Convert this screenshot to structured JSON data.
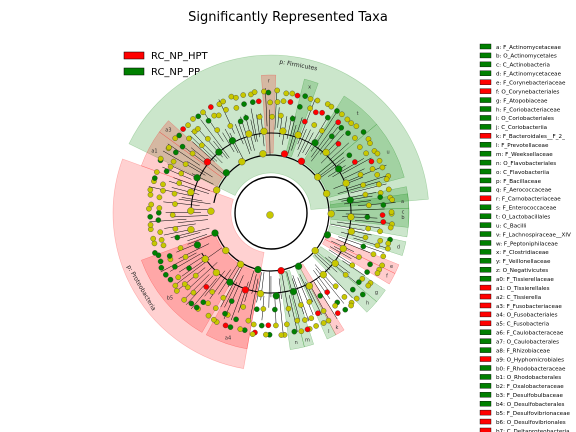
{
  "chart_data": {
    "type": "cladogram",
    "title": "Significantly Represented Taxa",
    "groups": [
      {
        "name": "RC_NP_HPT",
        "color": "#ff0000",
        "shade": "#ffb3b3"
      },
      {
        "name": "RC_NP_PP",
        "color": "#008000",
        "shade": "#a8d5a8"
      }
    ],
    "phylum_sectors": [
      {
        "label": "p: Firmicutes",
        "group": "RC_NP_PP",
        "start": 206,
        "end": 355
      },
      {
        "label": "p: Proteobacteria",
        "group": "RC_NP_HPT",
        "start": 100,
        "end": 200
      }
    ],
    "taxa": [
      {
        "key": "a",
        "name": "F_Actinomycetaceae",
        "group": "RC_NP_PP"
      },
      {
        "key": "b",
        "name": "O_Actinomycetales",
        "group": "RC_NP_PP"
      },
      {
        "key": "c",
        "name": "C_Actinobacteria",
        "group": "RC_NP_PP"
      },
      {
        "key": "d",
        "name": "F_Actinomycetaceae",
        "group": "RC_NP_PP"
      },
      {
        "key": "e",
        "name": "F_Corynebacteriaceae",
        "group": "RC_NP_HPT"
      },
      {
        "key": "f",
        "name": "O_Corynebacteriales",
        "group": "RC_NP_HPT"
      },
      {
        "key": "g",
        "name": "F_Atopobiaceae",
        "group": "RC_NP_PP"
      },
      {
        "key": "h",
        "name": "F_Coriobacteriaceae",
        "group": "RC_NP_PP"
      },
      {
        "key": "i",
        "name": "O_Coriobacteriales",
        "group": "RC_NP_PP"
      },
      {
        "key": "j",
        "name": "C_Coriobacteriia",
        "group": "RC_NP_PP"
      },
      {
        "key": "k",
        "name": "F_Bacteroidales__F_2_",
        "group": "RC_NP_HPT"
      },
      {
        "key": "l",
        "name": "F_Prevotellaceae",
        "group": "RC_NP_PP"
      },
      {
        "key": "m",
        "name": "F_Weeksellaceae",
        "group": "RC_NP_PP"
      },
      {
        "key": "n",
        "name": "O_Flavobacteriales",
        "group": "RC_NP_PP"
      },
      {
        "key": "o",
        "name": "C_Flavobacteriia",
        "group": "RC_NP_PP"
      },
      {
        "key": "p",
        "name": "F_Bacillaceae",
        "group": "RC_NP_PP"
      },
      {
        "key": "q",
        "name": "F_Aerococcaceae",
        "group": "RC_NP_PP"
      },
      {
        "key": "r",
        "name": "F_Carnobacteriaceae",
        "group": "RC_NP_HPT"
      },
      {
        "key": "s",
        "name": "F_Enterococcaceae",
        "group": "RC_NP_PP"
      },
      {
        "key": "t",
        "name": "O_Lactobacillales",
        "group": "RC_NP_PP"
      },
      {
        "key": "u",
        "name": "C_Bacilli",
        "group": "RC_NP_PP"
      },
      {
        "key": "v",
        "name": "F_Lachnospiraceae__XIV",
        "group": "RC_NP_PP"
      },
      {
        "key": "w",
        "name": "F_Peptoniphilaceae",
        "group": "RC_NP_PP"
      },
      {
        "key": "x",
        "name": "F_Clostridiaceae",
        "group": "RC_NP_PP"
      },
      {
        "key": "y",
        "name": "F_Veillonellaceae",
        "group": "RC_NP_PP"
      },
      {
        "key": "z",
        "name": "O_Negativicutes",
        "group": "RC_NP_PP"
      },
      {
        "key": "a0",
        "name": "F_Tissierellaceae",
        "group": "RC_NP_PP"
      },
      {
        "key": "a1",
        "name": "O_Tissierellales",
        "group": "RC_NP_HPT"
      },
      {
        "key": "a2",
        "name": "C_Tissierella",
        "group": "RC_NP_HPT"
      },
      {
        "key": "a3",
        "name": "F_Fusobacteriaceae",
        "group": "RC_NP_HPT"
      },
      {
        "key": "a4",
        "name": "O_Fusobacteriales",
        "group": "RC_NP_HPT"
      },
      {
        "key": "a5",
        "name": "C_Fusobacteria",
        "group": "RC_NP_HPT"
      },
      {
        "key": "a6",
        "name": "F_Caulobacteraceae",
        "group": "RC_NP_PP"
      },
      {
        "key": "a7",
        "name": "O_Caulobacterales",
        "group": "RC_NP_PP"
      },
      {
        "key": "a8",
        "name": "F_Rhizobiaceae",
        "group": "RC_NP_PP"
      },
      {
        "key": "a9",
        "name": "O_Hyphomicrobiales",
        "group": "RC_NP_HPT"
      },
      {
        "key": "b0",
        "name": "F_Rhodobacteraceae",
        "group": "RC_NP_PP"
      },
      {
        "key": "b1",
        "name": "O_Rhodobacterales",
        "group": "RC_NP_PP"
      },
      {
        "key": "b2",
        "name": "F_Oxalobacteraceae",
        "group": "RC_NP_PP"
      },
      {
        "key": "b3",
        "name": "F_Desulfobulbaceae",
        "group": "RC_NP_PP"
      },
      {
        "key": "b4",
        "name": "O_Desulfobacterales",
        "group": "RC_NP_PP"
      },
      {
        "key": "b5",
        "name": "F_Desulfovibrionaceae",
        "group": "RC_NP_HPT"
      },
      {
        "key": "b6",
        "name": "O_Desulfovibrionales",
        "group": "RC_NP_HPT"
      },
      {
        "key": "b7",
        "name": "C_Deltaproteobacteria",
        "group": "RC_NP_HPT"
      }
    ],
    "clade_highlights": [
      {
        "key": "a",
        "group": "RC_NP_PP",
        "start": 352,
        "end": 358
      },
      {
        "key": "b",
        "group": "RC_NP_PP",
        "start": 358,
        "end": 6
      },
      {
        "key": "c",
        "group": "RC_NP_PP",
        "start": 349,
        "end": 10
      },
      {
        "key": "d",
        "group": "RC_NP_PP",
        "start": 12,
        "end": 18
      },
      {
        "key": "e",
        "group": "RC_NP_HPT",
        "start": 22,
        "end": 26
      },
      {
        "key": "f",
        "group": "RC_NP_HPT",
        "start": 26,
        "end": 31
      },
      {
        "key": "g",
        "group": "RC_NP_PP",
        "start": 34,
        "end": 40
      },
      {
        "key": "h",
        "group": "RC_NP_PP",
        "start": 40,
        "end": 46
      },
      {
        "key": "k",
        "group": "RC_NP_HPT",
        "start": 58,
        "end": 62
      },
      {
        "key": "l",
        "group": "RC_NP_PP",
        "start": 62,
        "end": 66
      },
      {
        "key": "m",
        "group": "RC_NP_PP",
        "start": 72,
        "end": 76
      },
      {
        "key": "n",
        "group": "RC_NP_PP",
        "start": 76,
        "end": 82
      },
      {
        "key": "a4",
        "group": "RC_NP_HPT",
        "start": 100,
        "end": 118
      },
      {
        "key": "b5",
        "group": "RC_NP_HPT",
        "start": 120,
        "end": 160
      },
      {
        "key": "a1",
        "group": "RC_NP_HPT",
        "start": 200,
        "end": 216
      },
      {
        "key": "a3",
        "group": "RC_NP_HPT",
        "start": 216,
        "end": 222
      },
      {
        "key": "r",
        "group": "RC_NP_HPT",
        "start": 266,
        "end": 272
      },
      {
        "key": "x",
        "group": "RC_NP_PP",
        "start": 284,
        "end": 290
      },
      {
        "key": "t",
        "group": "RC_NP_PP",
        "start": 302,
        "end": 320
      },
      {
        "key": "u",
        "group": "RC_NP_PP",
        "start": 320,
        "end": 345
      }
    ]
  }
}
